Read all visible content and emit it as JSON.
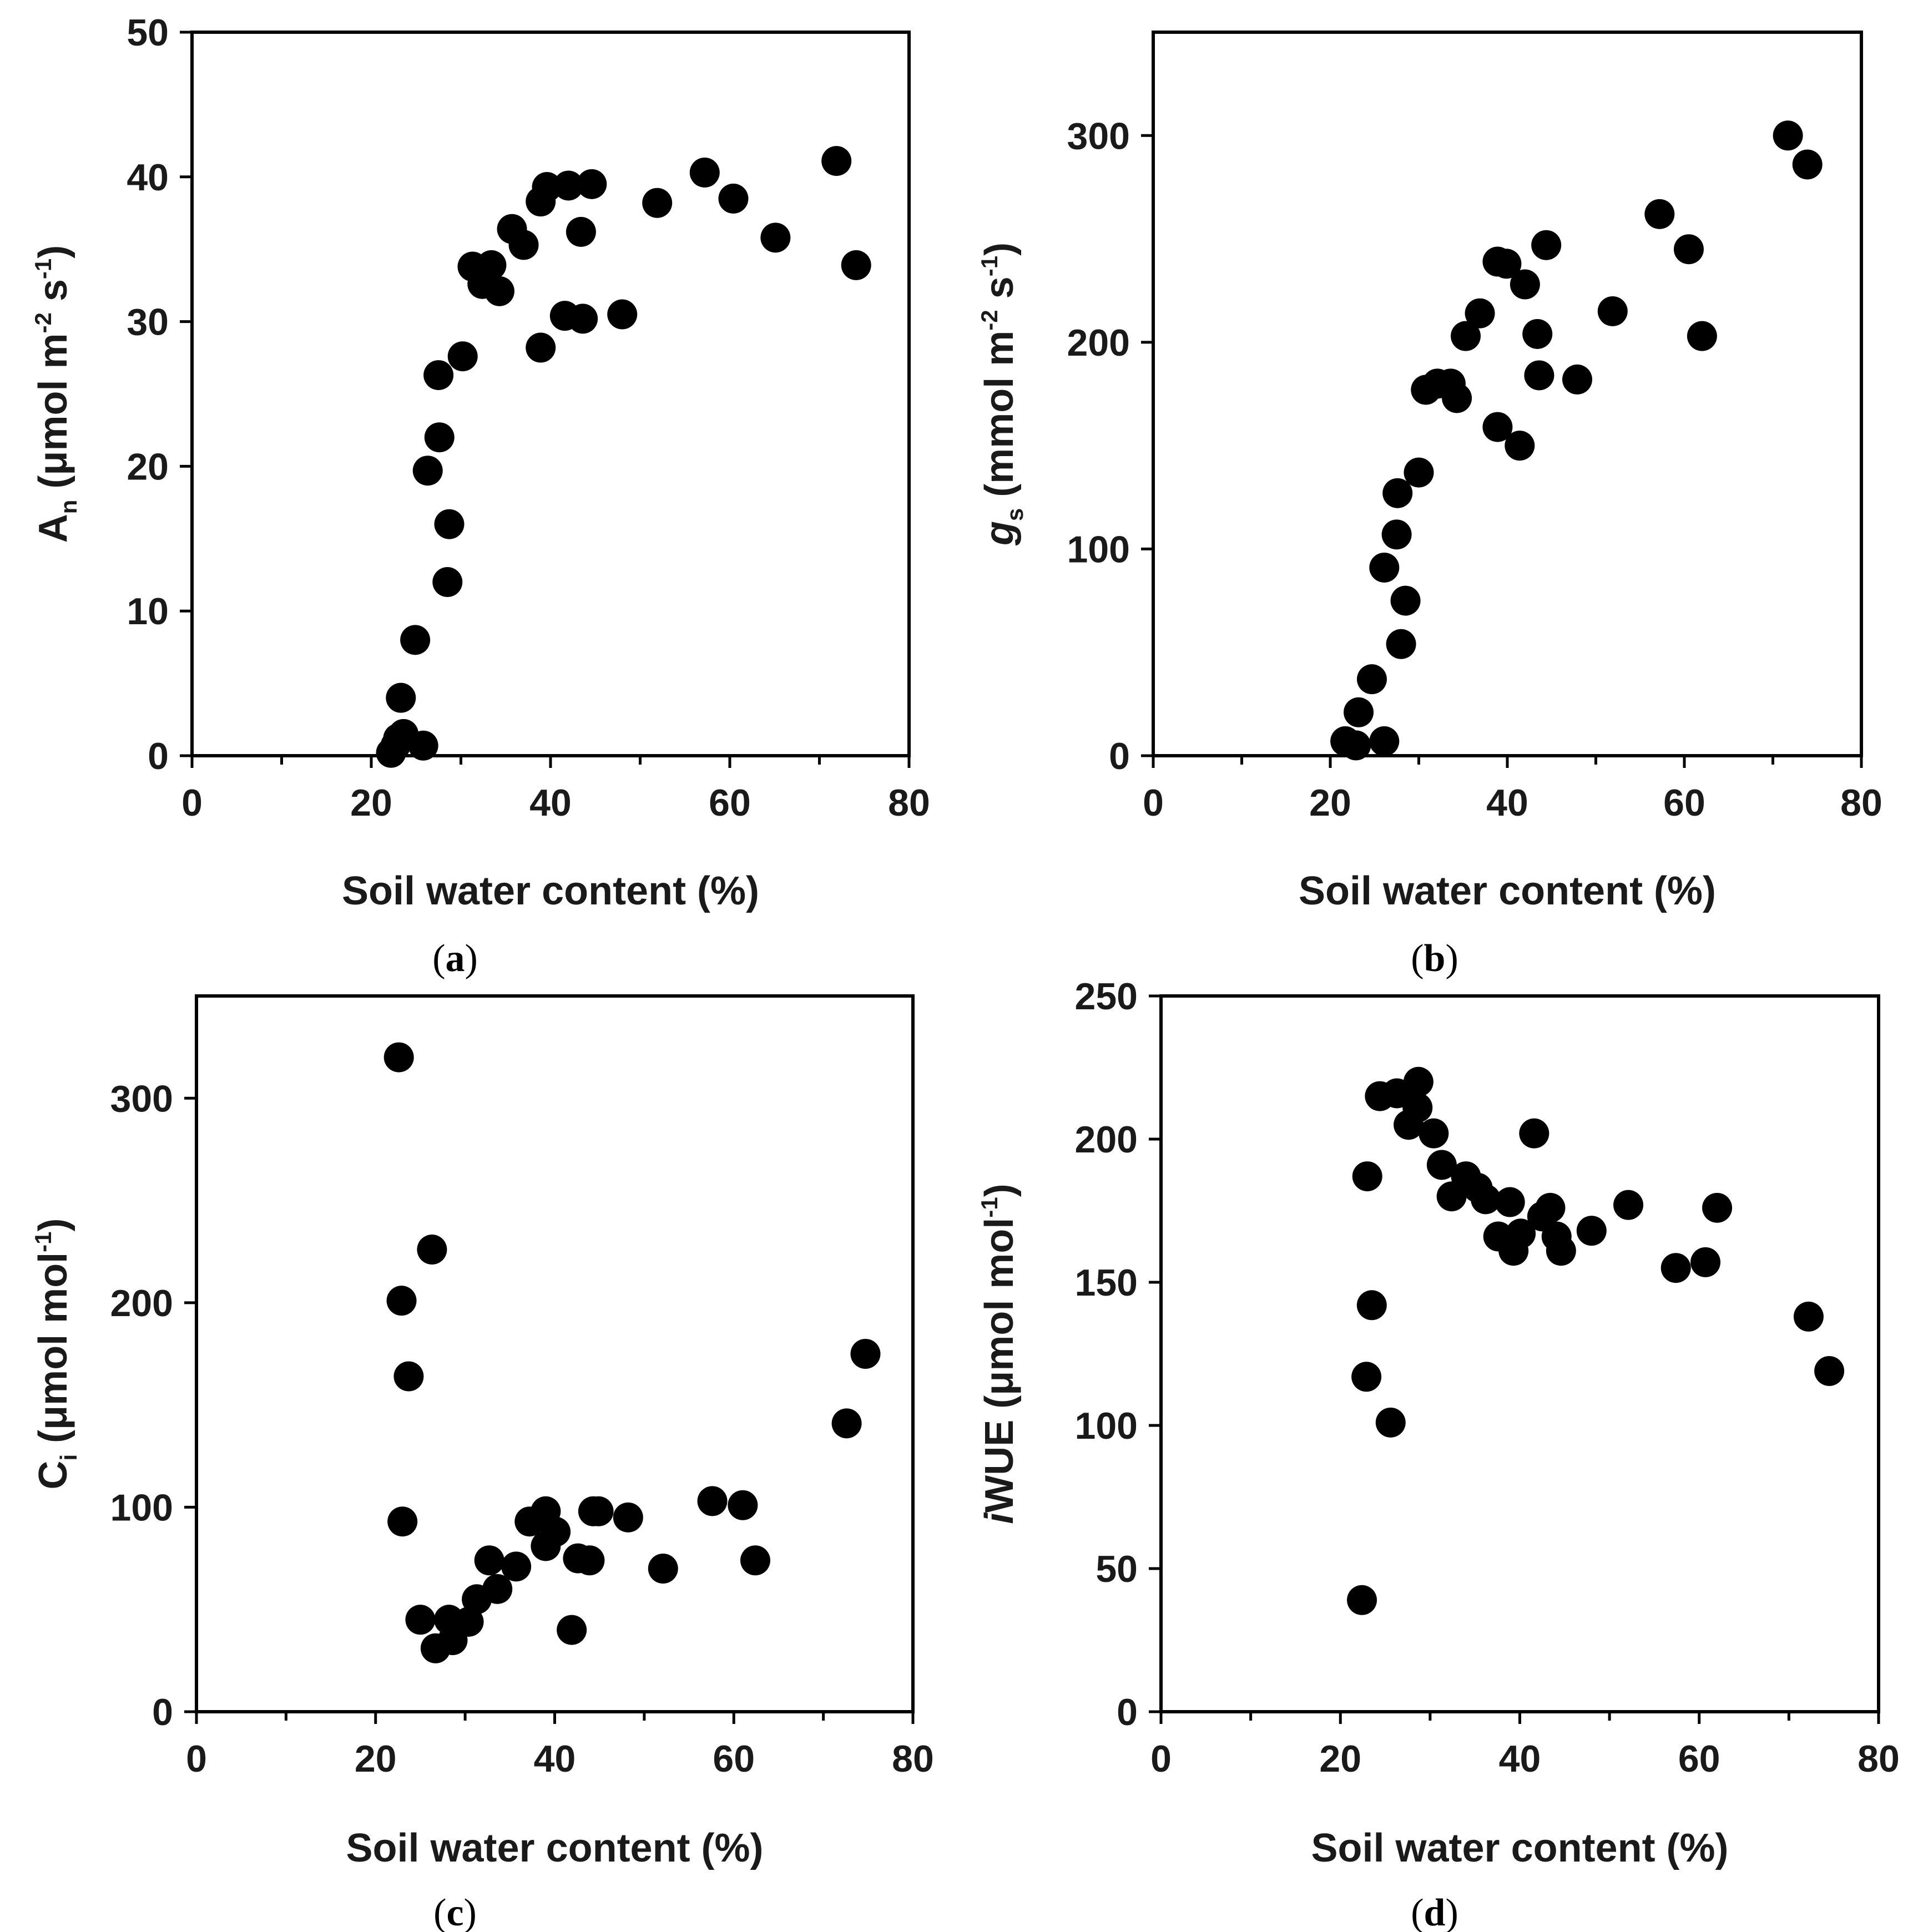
{
  "figure": {
    "colors": {
      "marker": "#000000",
      "text": "#1a1a1a",
      "background": "#ffffff"
    }
  },
  "chart_data": [
    {
      "id": "a",
      "type": "scatter",
      "panel_label": "a",
      "title": "",
      "xlabel": "Soil water content (%)",
      "ylabel": {
        "base": "A",
        "sub": "n",
        "rest1": " (μmol m",
        "sup1": "-2",
        "rest2": " s",
        "sup2": "-1",
        "rest3": ")"
      },
      "xlim": [
        0,
        80
      ],
      "ylim": [
        0,
        50
      ],
      "xticks": [
        0,
        20,
        40,
        60,
        80
      ],
      "yticks": [
        0,
        10,
        20,
        30,
        40,
        50
      ],
      "series": [
        {
          "name": "An",
          "points": [
            [
              22.2,
              0.2
            ],
            [
              22.7,
              0.7
            ],
            [
              23.0,
              1.2
            ],
            [
              23.3,
              4.0
            ],
            [
              23.6,
              1.5
            ],
            [
              25.8,
              0.7
            ],
            [
              24.9,
              8.0
            ],
            [
              28.5,
              12.0
            ],
            [
              28.7,
              16.0
            ],
            [
              26.3,
              19.7
            ],
            [
              27.6,
              22.0
            ],
            [
              27.5,
              26.3
            ],
            [
              30.2,
              27.6
            ],
            [
              31.3,
              33.8
            ],
            [
              32.4,
              32.6
            ],
            [
              33.4,
              33.9
            ],
            [
              34.3,
              32.1
            ],
            [
              35.7,
              36.4
            ],
            [
              37.0,
              35.3
            ],
            [
              38.9,
              38.3
            ],
            [
              39.6,
              39.3
            ],
            [
              38.9,
              28.2
            ],
            [
              41.6,
              30.4
            ],
            [
              42.0,
              39.4
            ],
            [
              43.4,
              36.2
            ],
            [
              43.6,
              30.2
            ],
            [
              44.6,
              39.5
            ],
            [
              48.0,
              30.5
            ],
            [
              51.9,
              38.2
            ],
            [
              57.2,
              40.3
            ],
            [
              60.4,
              38.5
            ],
            [
              65.1,
              35.8
            ],
            [
              71.9,
              41.1
            ],
            [
              74.1,
              33.9
            ]
          ]
        }
      ]
    },
    {
      "id": "b",
      "type": "scatter",
      "panel_label": "b",
      "title": "",
      "xlabel": "Soil water content (%)",
      "ylabel": {
        "base": "g",
        "sub": "s",
        "rest1": " (mmol m",
        "sup1": "-2",
        "rest2": " s",
        "sup2": "-1",
        "rest3": ")"
      },
      "xlim": [
        0,
        80
      ],
      "ylim": [
        0,
        350
      ],
      "xticks": [
        0,
        20,
        40,
        60,
        80
      ],
      "yticks": [
        0,
        100,
        200,
        300
      ],
      "series": [
        {
          "name": "gs",
          "points": [
            [
              21.7,
              7
            ],
            [
              22.9,
              5
            ],
            [
              23.2,
              21
            ],
            [
              26.1,
              7
            ],
            [
              24.7,
              37
            ],
            [
              28.0,
              54
            ],
            [
              28.5,
              75
            ],
            [
              26.1,
              91
            ],
            [
              27.5,
              107
            ],
            [
              27.6,
              127
            ],
            [
              30.0,
              137
            ],
            [
              30.8,
              177
            ],
            [
              32.1,
              180
            ],
            [
              33.6,
              180
            ],
            [
              34.3,
              173
            ],
            [
              35.3,
              203
            ],
            [
              36.9,
              214
            ],
            [
              38.9,
              239
            ],
            [
              39.9,
              238
            ],
            [
              38.9,
              159
            ],
            [
              41.4,
              150
            ],
            [
              42.0,
              228
            ],
            [
              43.4,
              204
            ],
            [
              43.6,
              184
            ],
            [
              44.4,
              247
            ],
            [
              47.9,
              182
            ],
            [
              51.9,
              215
            ],
            [
              57.2,
              262
            ],
            [
              60.5,
              245
            ],
            [
              62.0,
              203
            ],
            [
              71.7,
              300
            ],
            [
              73.9,
              286
            ]
          ]
        }
      ]
    },
    {
      "id": "c",
      "type": "scatter",
      "panel_label": "c",
      "title": "",
      "xlabel": "Soil water content (%)",
      "ylabel": {
        "base": "C",
        "sub": "i",
        "rest1": " (μmol mol",
        "sup1": "-1",
        "rest2": ")",
        "sup2": "",
        "rest3": ""
      },
      "xlim": [
        0,
        80
      ],
      "ylim": [
        0,
        350
      ],
      "xticks": [
        0,
        20,
        40,
        60,
        80
      ],
      "yticks": [
        0,
        100,
        200,
        300
      ],
      "series": [
        {
          "name": "Ci",
          "points": [
            [
              22.6,
              320
            ],
            [
              22.9,
              201
            ],
            [
              23.0,
              93
            ],
            [
              23.7,
              164
            ],
            [
              26.3,
              226
            ],
            [
              25.0,
              45
            ],
            [
              26.7,
              31
            ],
            [
              28.2,
              45
            ],
            [
              28.6,
              35
            ],
            [
              30.4,
              44
            ],
            [
              31.3,
              55
            ],
            [
              32.7,
              74
            ],
            [
              33.6,
              60
            ],
            [
              35.7,
              71
            ],
            [
              37.2,
              93
            ],
            [
              39.0,
              98
            ],
            [
              39.0,
              81
            ],
            [
              40.1,
              88
            ],
            [
              41.9,
              40
            ],
            [
              42.6,
              75
            ],
            [
              43.9,
              74
            ],
            [
              44.3,
              98
            ],
            [
              44.9,
              98
            ],
            [
              48.2,
              95
            ],
            [
              52.1,
              70
            ],
            [
              57.6,
              103
            ],
            [
              61.0,
              101
            ],
            [
              62.4,
              74
            ],
            [
              72.6,
              141
            ],
            [
              74.7,
              175
            ]
          ]
        }
      ]
    },
    {
      "id": "d",
      "type": "scatter",
      "panel_label": "d",
      "title": "",
      "xlabel": "Soil water content (%)",
      "ylabel": {
        "prefix_italic": "i",
        "base": "WUE",
        "sub": "",
        "rest1": " (μmol mol",
        "sup1": "-1",
        "rest2": ")",
        "sup2": "",
        "rest3": ""
      },
      "xlim": [
        0,
        80
      ],
      "ylim": [
        0,
        250
      ],
      "xticks": [
        0,
        20,
        40,
        60,
        80
      ],
      "yticks": [
        0,
        50,
        100,
        150,
        200,
        250
      ],
      "series": [
        {
          "name": "iWUE",
          "points": [
            [
              22.4,
              39
            ],
            [
              22.9,
              117
            ],
            [
              23.0,
              187
            ],
            [
              23.5,
              142
            ],
            [
              25.6,
              101
            ],
            [
              24.4,
              215
            ],
            [
              26.3,
              216
            ],
            [
              27.6,
              205
            ],
            [
              28.7,
              220
            ],
            [
              28.6,
              211
            ],
            [
              30.4,
              202
            ],
            [
              31.3,
              191
            ],
            [
              32.4,
              180
            ],
            [
              34.0,
              187
            ],
            [
              35.3,
              183
            ],
            [
              36.2,
              179
            ],
            [
              37.6,
              166
            ],
            [
              38.9,
              178
            ],
            [
              39.3,
              161
            ],
            [
              40.1,
              167
            ],
            [
              41.6,
              202
            ],
            [
              42.5,
              173
            ],
            [
              43.4,
              176
            ],
            [
              44.1,
              166
            ],
            [
              44.6,
              161
            ],
            [
              48.0,
              168
            ],
            [
              52.1,
              177
            ],
            [
              57.4,
              155
            ],
            [
              60.7,
              157
            ],
            [
              62.0,
              176
            ],
            [
              72.2,
              138
            ],
            [
              74.5,
              119
            ]
          ]
        }
      ]
    }
  ]
}
